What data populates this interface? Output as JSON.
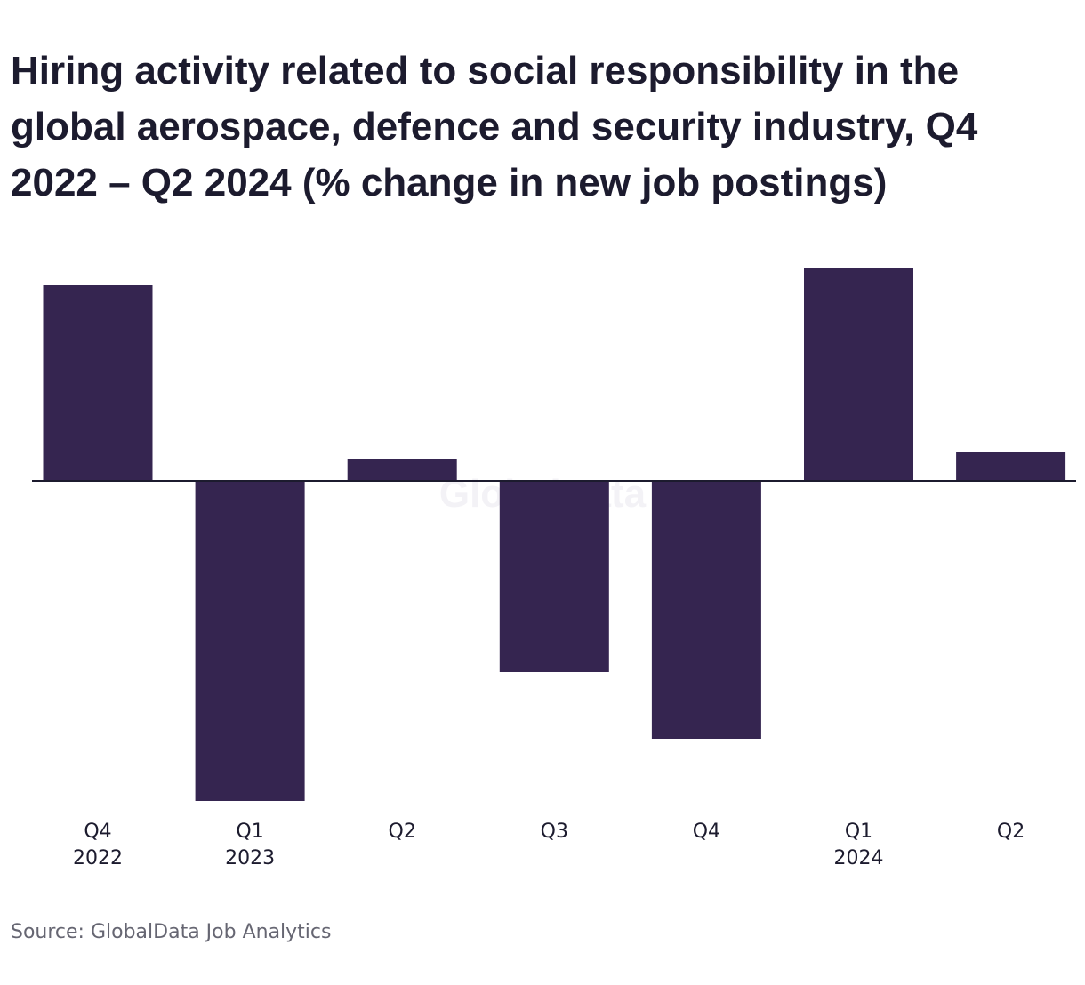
{
  "watermark": "GlobalData",
  "source": "Source: GlobalData Job Analytics",
  "colors": {
    "bar": "#352550",
    "axis": "#1c1b2e",
    "text": "#1c1b2e"
  },
  "chart_data": {
    "type": "bar",
    "title": "Hiring activity related to social responsibility in the global aerospace, defence and security industry, Q4 2022 – Q2 2024 (% change in new job postings)",
    "categories": [
      [
        "Q4",
        "2022"
      ],
      [
        "Q1",
        "2023"
      ],
      [
        "Q2",
        ""
      ],
      [
        "Q3",
        ""
      ],
      [
        "Q4",
        ""
      ],
      [
        "Q1",
        "2024"
      ],
      [
        "Q2",
        ""
      ]
    ],
    "values": [
      22,
      -36,
      2.5,
      -21.5,
      -29,
      24,
      3.3
    ],
    "ylim": [
      -36,
      24
    ],
    "grid": false,
    "xlabel": "",
    "ylabel": ""
  }
}
